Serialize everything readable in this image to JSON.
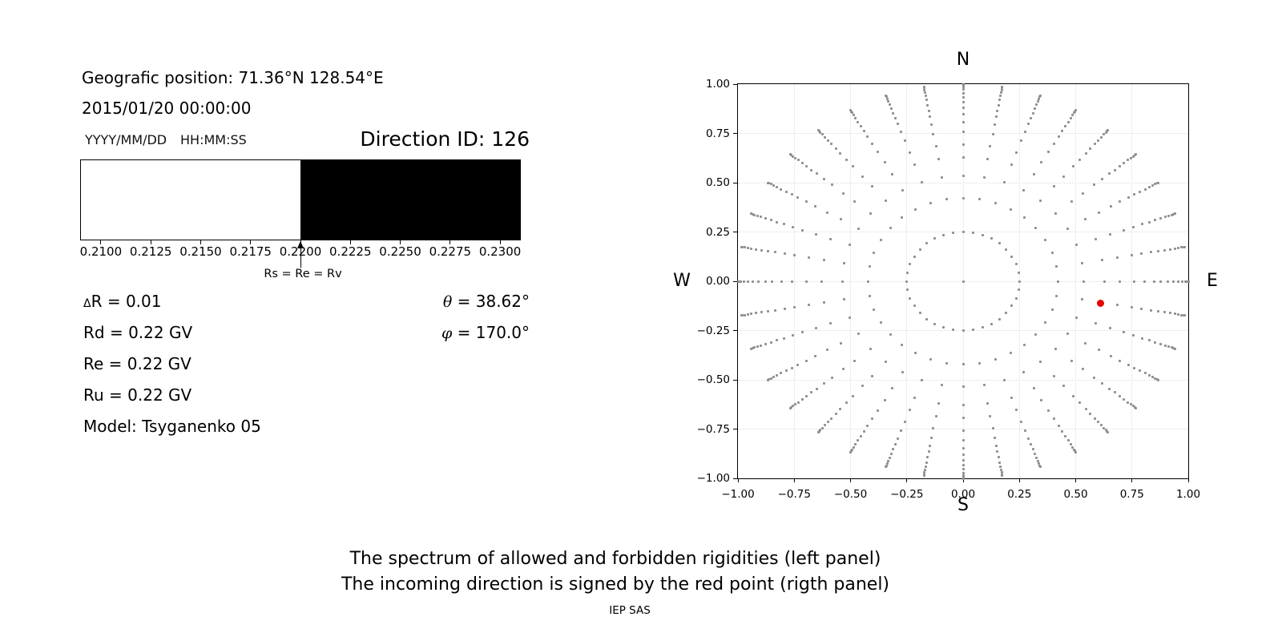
{
  "left_panel": {
    "geo_position": "Geografic position: 71.36°N 128.54°E",
    "datetime": "2015/01/20 00:00:00",
    "date_format_label": "YYYY/MM/DD",
    "time_format_label": "HH:MM:SS",
    "direction_id": "Direction ID: 126",
    "params_left": [
      {
        "sym": "Δ",
        "sym_style": "small",
        "rest": "R = 0.01"
      },
      {
        "sym": "",
        "sym_style": "",
        "rest": "Rd = 0.22 GV"
      },
      {
        "sym": "",
        "sym_style": "",
        "rest": "Re = 0.22 GV"
      },
      {
        "sym": "",
        "sym_style": "",
        "rest": "Ru = 0.22 GV"
      },
      {
        "sym": "",
        "sym_style": "",
        "rest": "Model: Tsyganenko 05"
      }
    ],
    "params_right": [
      {
        "sym": "θ",
        "sym_style": "italic",
        "rest": " = 38.62°"
      },
      {
        "sym": "φ",
        "sym_style": "italic",
        "rest": " = 170.0°"
      }
    ]
  },
  "chart_data": [
    {
      "type": "area",
      "title": "spectrum of allowed and forbidden rigidities",
      "xlim": [
        0.209,
        0.231
      ],
      "boundary_value": 0.22,
      "regions": [
        {
          "label": "allowed",
          "from": 0.209,
          "to": 0.22,
          "color": "#ffffff"
        },
        {
          "label": "forbidden",
          "from": 0.22,
          "to": 0.231,
          "color": "#000000"
        }
      ],
      "xticks": [
        "0.2100",
        "0.2125",
        "0.2150",
        "0.2175",
        "0.2200",
        "0.2225",
        "0.2250",
        "0.2275",
        "0.2300"
      ],
      "xtick_values": [
        0.21,
        0.2125,
        0.215,
        0.2175,
        0.22,
        0.2225,
        0.225,
        0.2275,
        0.23
      ],
      "annotation": {
        "text": "Rs = Re = Rv",
        "x": 0.22
      }
    },
    {
      "type": "scatter",
      "title": "asymptotic incoming direction map",
      "xlim": [
        -1,
        1
      ],
      "ylim": [
        -1,
        1
      ],
      "grid": true,
      "xticks": [
        "−1.00",
        "−0.75",
        "−0.50",
        "−0.25",
        "0.00",
        "0.25",
        "0.50",
        "0.75",
        "1.00"
      ],
      "xtick_values": [
        -1,
        -0.75,
        -0.5,
        -0.25,
        0,
        0.25,
        0.5,
        0.75,
        1
      ],
      "yticks": [
        "1.00",
        "0.75",
        "0.50",
        "0.25",
        "0.00",
        "−0.25",
        "−0.50",
        "−0.75",
        "−1.00"
      ],
      "ytick_values": [
        1,
        0.75,
        0.5,
        0.25,
        0,
        -0.25,
        -0.5,
        -0.75,
        -1
      ],
      "compass": {
        "top": "N",
        "bottom": "S",
        "left": "W",
        "right": "E"
      },
      "spokes": {
        "azimuth_start_deg": 0,
        "azimuth_step_deg": 10,
        "azimuth_count": 36,
        "radii": [
          0.25,
          0.422,
          0.535,
          0.628,
          0.695,
          0.759,
          0.805,
          0.848,
          0.879,
          0.908,
          0.933,
          0.955,
          0.972,
          0.986,
          0.995,
          1.0
        ]
      },
      "center_dot": {
        "x": 0,
        "y": 0
      },
      "dot_color": "#8f8f8f",
      "grid_color": "#dedede",
      "red_point": {
        "x": 0.61,
        "y": -0.11,
        "color": "#e60000"
      }
    }
  ],
  "captions": {
    "line1": "The spectrum of allowed and forbidden rigidities (left panel)",
    "line2": "The incoming direction is signed by the red point (rigth panel)",
    "credit": "IEP SAS"
  }
}
